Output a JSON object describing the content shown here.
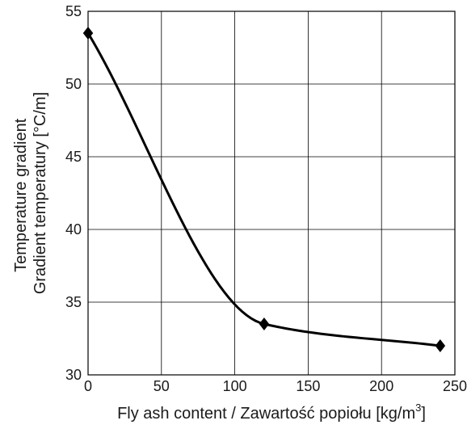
{
  "chart_data": {
    "type": "line",
    "title": "",
    "xlabel": "Fly ash content / Zawartość popiołu [kg/m",
    "xlabel_superscript": "3",
    "xlabel_suffix": "]",
    "ylabel_lines": [
      "Temperature gradient",
      "Gradient temperatury [°C/m]"
    ],
    "xlim": [
      0,
      250
    ],
    "ylim": [
      30,
      55
    ],
    "xticks": [
      0,
      50,
      100,
      150,
      200,
      250
    ],
    "yticks": [
      30,
      35,
      40,
      45,
      50,
      55
    ],
    "grid": true,
    "legend": "none",
    "series": [
      {
        "points": [
          {
            "x": 0,
            "y": 53.5
          },
          {
            "x": 120,
            "y": 33.5
          },
          {
            "x": 240,
            "y": 32.0
          }
        ],
        "marker": "diamond",
        "color": "#000000"
      }
    ]
  }
}
